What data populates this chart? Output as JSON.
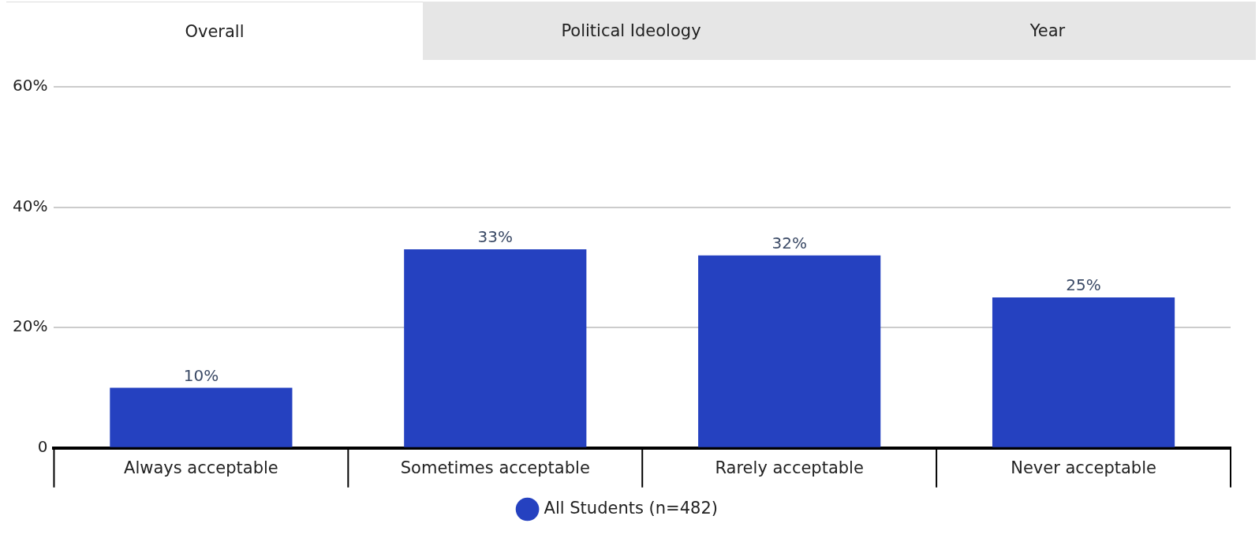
{
  "chart_data": {
    "type": "bar",
    "annotations": [
      "Overall",
      "Political Ideology",
      "Year"
    ],
    "categories": [
      "Always acceptable",
      "Sometimes acceptable",
      "Rarely acceptable",
      "Never acceptable"
    ],
    "series": [
      {
        "name": "All Students (n=482)",
        "color": "#2541c0",
        "values": [
          10,
          33,
          32,
          25
        ],
        "value_labels": [
          "10%",
          "33%",
          "32%",
          "25%"
        ]
      }
    ],
    "ylim": [
      0,
      60
    ],
    "yticks": [
      {
        "value": 0,
        "label": "0"
      },
      {
        "value": 20,
        "label": "20%"
      },
      {
        "value": 40,
        "label": "40%"
      },
      {
        "value": 60,
        "label": "60%"
      }
    ],
    "grid": "y",
    "legend": "bottom"
  }
}
